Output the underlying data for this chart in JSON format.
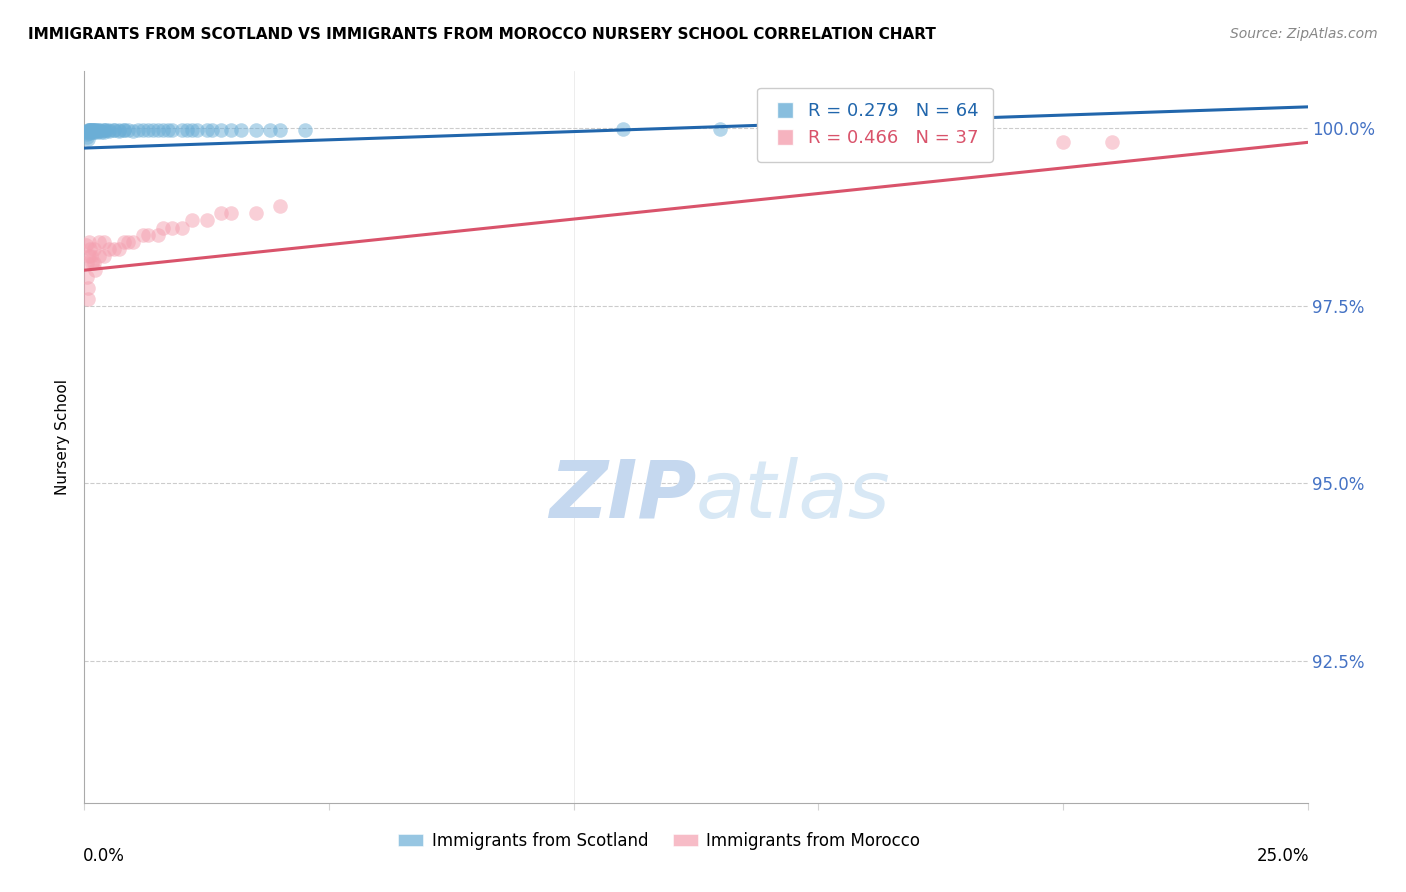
{
  "title": "IMMIGRANTS FROM SCOTLAND VS IMMIGRANTS FROM MOROCCO NURSERY SCHOOL CORRELATION CHART",
  "source": "Source: ZipAtlas.com",
  "ylabel": "Nursery School",
  "ytick_labels": [
    "92.5%",
    "95.0%",
    "97.5%",
    "100.0%"
  ],
  "ytick_values": [
    0.925,
    0.95,
    0.975,
    1.0
  ],
  "xlim": [
    0.0,
    0.25
  ],
  "ylim": [
    0.905,
    1.008
  ],
  "R_scotland": 0.279,
  "N_scotland": 64,
  "R_morocco": 0.466,
  "N_morocco": 37,
  "color_scotland": "#6baed6",
  "color_morocco": "#f4a0b0",
  "color_scotland_line": "#2166ac",
  "color_morocco_line": "#d9536b",
  "scotland_x": [
    0.0004,
    0.0005,
    0.0006,
    0.0007,
    0.0008,
    0.0008,
    0.0009,
    0.001,
    0.001,
    0.001,
    0.0012,
    0.0013,
    0.0014,
    0.0015,
    0.0016,
    0.0017,
    0.002,
    0.002,
    0.002,
    0.002,
    0.0022,
    0.0023,
    0.0025,
    0.003,
    0.003,
    0.003,
    0.0033,
    0.004,
    0.004,
    0.004,
    0.0045,
    0.005,
    0.005,
    0.006,
    0.006,
    0.007,
    0.007,
    0.008,
    0.008,
    0.009,
    0.01,
    0.011,
    0.012,
    0.013,
    0.014,
    0.015,
    0.016,
    0.017,
    0.018,
    0.02,
    0.021,
    0.022,
    0.023,
    0.025,
    0.026,
    0.028,
    0.03,
    0.032,
    0.035,
    0.038,
    0.04,
    0.045,
    0.11,
    0.13
  ],
  "scotland_y": [
    0.9995,
    0.9992,
    0.9988,
    0.9985,
    0.9998,
    0.9996,
    0.9993,
    0.9998,
    0.9997,
    0.9995,
    0.9998,
    0.9997,
    0.9996,
    0.9998,
    0.9997,
    0.9995,
    0.9998,
    0.9997,
    0.9996,
    0.9994,
    0.9998,
    0.9997,
    0.9995,
    0.9998,
    0.9997,
    0.9996,
    0.9994,
    0.9998,
    0.9997,
    0.9995,
    0.9997,
    0.9998,
    0.9996,
    0.9998,
    0.9997,
    0.9998,
    0.9996,
    0.9998,
    0.9997,
    0.9997,
    0.9996,
    0.9997,
    0.9997,
    0.9997,
    0.9998,
    0.9998,
    0.9997,
    0.9997,
    0.9998,
    0.9998,
    0.9998,
    0.9997,
    0.9998,
    0.9998,
    0.9998,
    0.9998,
    0.9998,
    0.9998,
    0.9998,
    0.9998,
    0.9998,
    0.9997,
    0.9999,
    0.9999
  ],
  "morocco_x": [
    0.0004,
    0.0005,
    0.0006,
    0.0007,
    0.0008,
    0.001,
    0.001,
    0.0012,
    0.0014,
    0.0016,
    0.002,
    0.002,
    0.0022,
    0.003,
    0.003,
    0.004,
    0.004,
    0.005,
    0.006,
    0.007,
    0.008,
    0.009,
    0.01,
    0.012,
    0.013,
    0.015,
    0.016,
    0.018,
    0.02,
    0.022,
    0.025,
    0.028,
    0.03,
    0.035,
    0.04,
    0.2,
    0.21
  ],
  "morocco_y": [
    0.9835,
    0.981,
    0.979,
    0.9775,
    0.976,
    0.984,
    0.982,
    0.983,
    0.982,
    0.981,
    0.983,
    0.981,
    0.98,
    0.984,
    0.982,
    0.984,
    0.982,
    0.983,
    0.983,
    0.983,
    0.984,
    0.984,
    0.984,
    0.985,
    0.985,
    0.985,
    0.986,
    0.986,
    0.986,
    0.987,
    0.987,
    0.988,
    0.988,
    0.988,
    0.989,
    0.998,
    0.998
  ]
}
